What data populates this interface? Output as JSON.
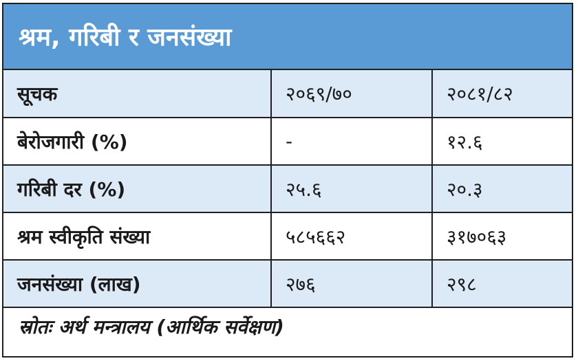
{
  "title": "श्रम, गरिबी र जनसंख्या",
  "table": {
    "header": {
      "indicator": "सूचक",
      "col1": "२०६९/७०",
      "col2": "२०८१/८२"
    },
    "rows": [
      {
        "indicator": "बेरोजगारी (%)",
        "col1": "-",
        "col2": "१२.६"
      },
      {
        "indicator": "गरिबी दर (%)",
        "col1": "२५.६",
        "col2": "२०.३"
      },
      {
        "indicator": "श्रम स्वीकृति संख्या",
        "col1": "५८५६६२",
        "col2": "३१७०६३"
      },
      {
        "indicator": "जनसंख्या (लाख)",
        "col1": "२७६",
        "col2": "२९८"
      }
    ]
  },
  "source": "स्रोतः अर्थ मन्त्रालय (आर्थिक सर्वेक्षण)",
  "colors": {
    "title_background": "#5b9bd5",
    "row_shade": "#dce9f6",
    "border": "#1f1f1f"
  }
}
